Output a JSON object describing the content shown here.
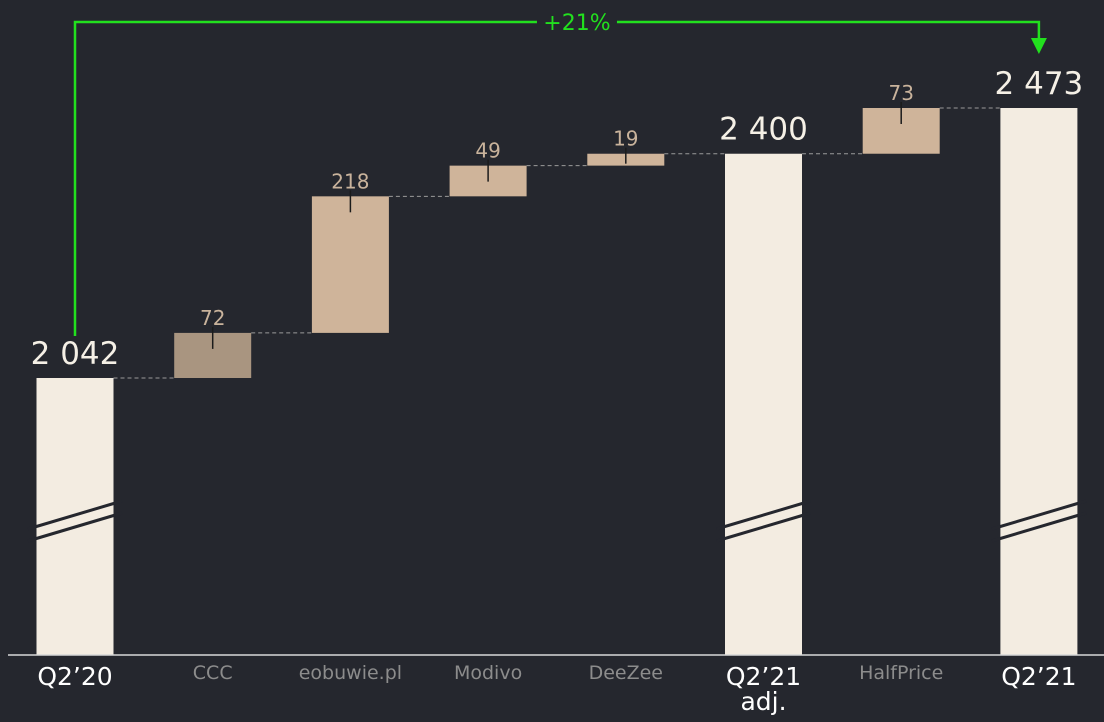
{
  "chart_data": {
    "type": "waterfall",
    "categories": [
      "Q2’20",
      "CCC",
      "eobuwie.pl",
      "Modivo",
      "DeeZee",
      "Q2’21 adj.",
      "HalfPrice",
      "Q2’21"
    ],
    "measure": [
      "total",
      "relative",
      "relative",
      "relative",
      "relative",
      "total",
      "relative",
      "total"
    ],
    "values": [
      2042,
      72,
      218,
      49,
      19,
      2400,
      73,
      2473
    ],
    "value_labels": [
      "2 042",
      "72",
      "218",
      "49",
      "19",
      "2 400",
      "73",
      "2 473"
    ],
    "colors": [
      "#f3ece1",
      "#a99580",
      "#cfb49a",
      "#cfb49a",
      "#cfb49a",
      "#f3ece1",
      "#cfb49a",
      "#f3ece1"
    ],
    "annotation": "+21%",
    "annotation_color": "#22e01e",
    "background": "#25272e"
  }
}
